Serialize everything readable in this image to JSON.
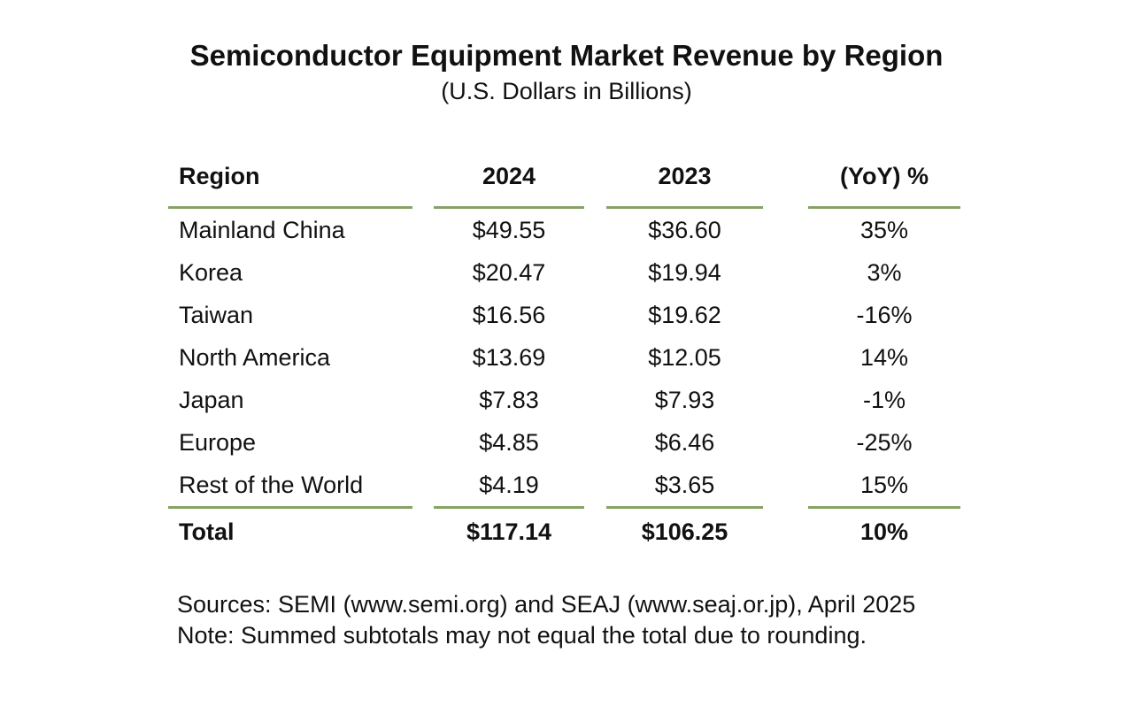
{
  "title": "Semiconductor Equipment Market Revenue by Region",
  "subtitle": "(U.S. Dollars in Billions)",
  "colors": {
    "rule": "#87a264",
    "text": "#111111",
    "background": "#ffffff"
  },
  "table": {
    "columns": [
      "Region",
      "2024",
      "2023",
      "(YoY) %"
    ],
    "rows": [
      {
        "region": "Mainland China",
        "y2024": "$49.55",
        "y2023": "$36.60",
        "yoy": "35%"
      },
      {
        "region": "Korea",
        "y2024": "$20.47",
        "y2023": "$19.94",
        "yoy": "3%"
      },
      {
        "region": "Taiwan",
        "y2024": "$16.56",
        "y2023": "$19.62",
        "yoy": "-16%"
      },
      {
        "region": "North America",
        "y2024": "$13.69",
        "y2023": "$12.05",
        "yoy": "14%"
      },
      {
        "region": "Japan",
        "y2024": "$7.83",
        "y2023": "$7.93",
        "yoy": "-1%"
      },
      {
        "region": "Europe",
        "y2024": "$4.85",
        "y2023": "$6.46",
        "yoy": "-25%"
      },
      {
        "region": "Rest of the World",
        "y2024": "$4.19",
        "y2023": "$3.65",
        "yoy": "15%"
      }
    ],
    "total": {
      "region": "Total",
      "y2024": "$117.14",
      "y2023": "$106.25",
      "yoy": "10%"
    }
  },
  "footer": {
    "sources": "Sources: SEMI (www.semi.org) and SEAJ (www.seaj.or.jp), April 2025",
    "note": "Note: Summed subtotals may not equal the total due to rounding."
  },
  "chart_data": {
    "type": "table",
    "title": "Semiconductor Equipment Market Revenue by Region",
    "subtitle": "(U.S. Dollars in Billions)",
    "columns": [
      "Region",
      "2024",
      "2023",
      "(YoY) %"
    ],
    "rows": [
      [
        "Mainland China",
        49.55,
        36.6,
        "35%"
      ],
      [
        "Korea",
        20.47,
        19.94,
        "3%"
      ],
      [
        "Taiwan",
        16.56,
        19.62,
        "-16%"
      ],
      [
        "North America",
        13.69,
        12.05,
        "14%"
      ],
      [
        "Japan",
        7.83,
        7.93,
        "-1%"
      ],
      [
        "Europe",
        4.85,
        6.46,
        "-25%"
      ],
      [
        "Rest of the World",
        4.19,
        3.65,
        "15%"
      ]
    ],
    "total": [
      "Total",
      117.14,
      106.25,
      "10%"
    ],
    "units": "U.S. Dollars in Billions",
    "sources": "SEMI (www.semi.org) and SEAJ (www.seaj.or.jp), April 2025",
    "note": "Summed subtotals may not equal the total due to rounding."
  }
}
